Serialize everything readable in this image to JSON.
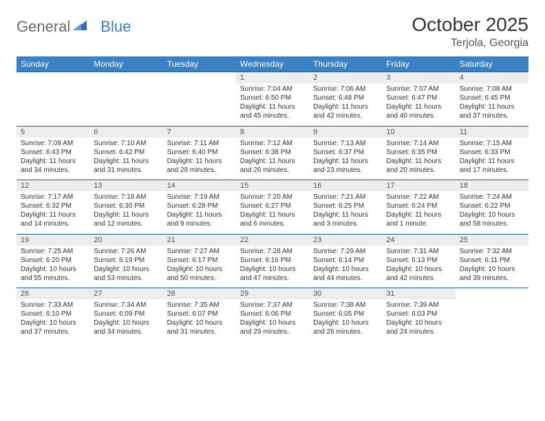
{
  "logo": {
    "text1": "General",
    "text2": "Blue"
  },
  "title": "October 2025",
  "location": "Terjola, Georgia",
  "colors": {
    "header_bg": "#3a82c4",
    "header_text": "#ffffff",
    "num_bg": "#ededed",
    "border": "#2d5d8f",
    "logo_gray": "#6b6b6b",
    "logo_blue": "#3a7cc0"
  },
  "dow": [
    "Sunday",
    "Monday",
    "Tuesday",
    "Wednesday",
    "Thursday",
    "Friday",
    "Saturday"
  ],
  "weeks": [
    [
      null,
      null,
      null,
      {
        "n": "1",
        "sr": "7:04 AM",
        "ss": "6:50 PM",
        "dh": "11",
        "dm": "45"
      },
      {
        "n": "2",
        "sr": "7:06 AM",
        "ss": "6:48 PM",
        "dh": "11",
        "dm": "42"
      },
      {
        "n": "3",
        "sr": "7:07 AM",
        "ss": "6:47 PM",
        "dh": "11",
        "dm": "40"
      },
      {
        "n": "4",
        "sr": "7:08 AM",
        "ss": "6:45 PM",
        "dh": "11",
        "dm": "37"
      }
    ],
    [
      {
        "n": "5",
        "sr": "7:09 AM",
        "ss": "6:43 PM",
        "dh": "11",
        "dm": "34"
      },
      {
        "n": "6",
        "sr": "7:10 AM",
        "ss": "6:42 PM",
        "dh": "11",
        "dm": "31"
      },
      {
        "n": "7",
        "sr": "7:11 AM",
        "ss": "6:40 PM",
        "dh": "11",
        "dm": "28"
      },
      {
        "n": "8",
        "sr": "7:12 AM",
        "ss": "6:38 PM",
        "dh": "11",
        "dm": "26"
      },
      {
        "n": "9",
        "sr": "7:13 AM",
        "ss": "6:37 PM",
        "dh": "11",
        "dm": "23"
      },
      {
        "n": "10",
        "sr": "7:14 AM",
        "ss": "6:35 PM",
        "dh": "11",
        "dm": "20"
      },
      {
        "n": "11",
        "sr": "7:15 AM",
        "ss": "6:33 PM",
        "dh": "11",
        "dm": "17"
      }
    ],
    [
      {
        "n": "12",
        "sr": "7:17 AM",
        "ss": "6:32 PM",
        "dh": "11",
        "dm": "14"
      },
      {
        "n": "13",
        "sr": "7:18 AM",
        "ss": "6:30 PM",
        "dh": "11",
        "dm": "12"
      },
      {
        "n": "14",
        "sr": "7:19 AM",
        "ss": "6:28 PM",
        "dh": "11",
        "dm": "9"
      },
      {
        "n": "15",
        "sr": "7:20 AM",
        "ss": "6:27 PM",
        "dh": "11",
        "dm": "6"
      },
      {
        "n": "16",
        "sr": "7:21 AM",
        "ss": "6:25 PM",
        "dh": "11",
        "dm": "3"
      },
      {
        "n": "17",
        "sr": "7:22 AM",
        "ss": "6:24 PM",
        "dh": "11",
        "dm": "1",
        "singular": true
      },
      {
        "n": "18",
        "sr": "7:24 AM",
        "ss": "6:22 PM",
        "dh": "10",
        "dm": "58"
      }
    ],
    [
      {
        "n": "19",
        "sr": "7:25 AM",
        "ss": "6:20 PM",
        "dh": "10",
        "dm": "55"
      },
      {
        "n": "20",
        "sr": "7:26 AM",
        "ss": "6:19 PM",
        "dh": "10",
        "dm": "53"
      },
      {
        "n": "21",
        "sr": "7:27 AM",
        "ss": "6:17 PM",
        "dh": "10",
        "dm": "50"
      },
      {
        "n": "22",
        "sr": "7:28 AM",
        "ss": "6:16 PM",
        "dh": "10",
        "dm": "47"
      },
      {
        "n": "23",
        "sr": "7:29 AM",
        "ss": "6:14 PM",
        "dh": "10",
        "dm": "44"
      },
      {
        "n": "24",
        "sr": "7:31 AM",
        "ss": "6:13 PM",
        "dh": "10",
        "dm": "42"
      },
      {
        "n": "25",
        "sr": "7:32 AM",
        "ss": "6:11 PM",
        "dh": "10",
        "dm": "39"
      }
    ],
    [
      {
        "n": "26",
        "sr": "7:33 AM",
        "ss": "6:10 PM",
        "dh": "10",
        "dm": "37"
      },
      {
        "n": "27",
        "sr": "7:34 AM",
        "ss": "6:09 PM",
        "dh": "10",
        "dm": "34"
      },
      {
        "n": "28",
        "sr": "7:35 AM",
        "ss": "6:07 PM",
        "dh": "10",
        "dm": "31"
      },
      {
        "n": "29",
        "sr": "7:37 AM",
        "ss": "6:06 PM",
        "dh": "10",
        "dm": "29"
      },
      {
        "n": "30",
        "sr": "7:38 AM",
        "ss": "6:05 PM",
        "dh": "10",
        "dm": "26"
      },
      {
        "n": "31",
        "sr": "7:39 AM",
        "ss": "6:03 PM",
        "dh": "10",
        "dm": "24"
      },
      null
    ]
  ],
  "labels": {
    "sunrise": "Sunrise:",
    "sunset": "Sunset:",
    "daylight": "Daylight:",
    "hours": "hours",
    "and": "and",
    "minutes": "minutes.",
    "minute": "minute."
  }
}
